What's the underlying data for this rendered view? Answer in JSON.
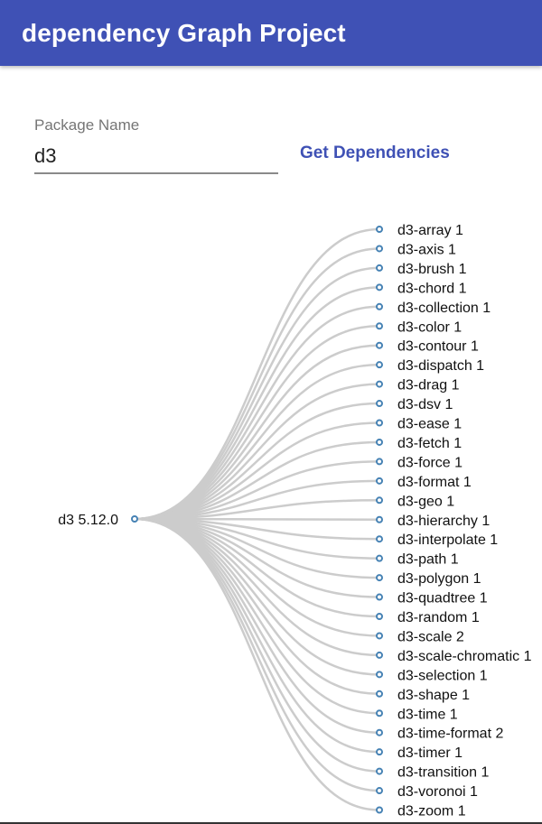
{
  "header": {
    "title": "dependency Graph Project"
  },
  "form": {
    "label": "Package Name",
    "value": "d3",
    "button_label": "Get Dependencies"
  },
  "colors": {
    "appbar": "#3f51b5",
    "link": "#cccccc",
    "node_stroke": "#4682b4"
  },
  "graph": {
    "root": {
      "label": "d3 5.12.0"
    },
    "children": [
      {
        "label": "d3-array 1"
      },
      {
        "label": "d3-axis 1"
      },
      {
        "label": "d3-brush 1"
      },
      {
        "label": "d3-chord 1"
      },
      {
        "label": "d3-collection 1"
      },
      {
        "label": "d3-color 1"
      },
      {
        "label": "d3-contour 1"
      },
      {
        "label": "d3-dispatch 1"
      },
      {
        "label": "d3-drag 1"
      },
      {
        "label": "d3-dsv 1"
      },
      {
        "label": "d3-ease 1"
      },
      {
        "label": "d3-fetch 1"
      },
      {
        "label": "d3-force 1"
      },
      {
        "label": "d3-format 1"
      },
      {
        "label": "d3-geo 1"
      },
      {
        "label": "d3-hierarchy 1"
      },
      {
        "label": "d3-interpolate 1"
      },
      {
        "label": "d3-path 1"
      },
      {
        "label": "d3-polygon 1"
      },
      {
        "label": "d3-quadtree 1"
      },
      {
        "label": "d3-random 1"
      },
      {
        "label": "d3-scale 2"
      },
      {
        "label": "d3-scale-chromatic 1"
      },
      {
        "label": "d3-selection 1"
      },
      {
        "label": "d3-shape 1"
      },
      {
        "label": "d3-time 1"
      },
      {
        "label": "d3-time-format 2"
      },
      {
        "label": "d3-timer 1"
      },
      {
        "label": "d3-transition 1"
      },
      {
        "label": "d3-voronoi 1"
      },
      {
        "label": "d3-zoom 1"
      }
    ]
  }
}
